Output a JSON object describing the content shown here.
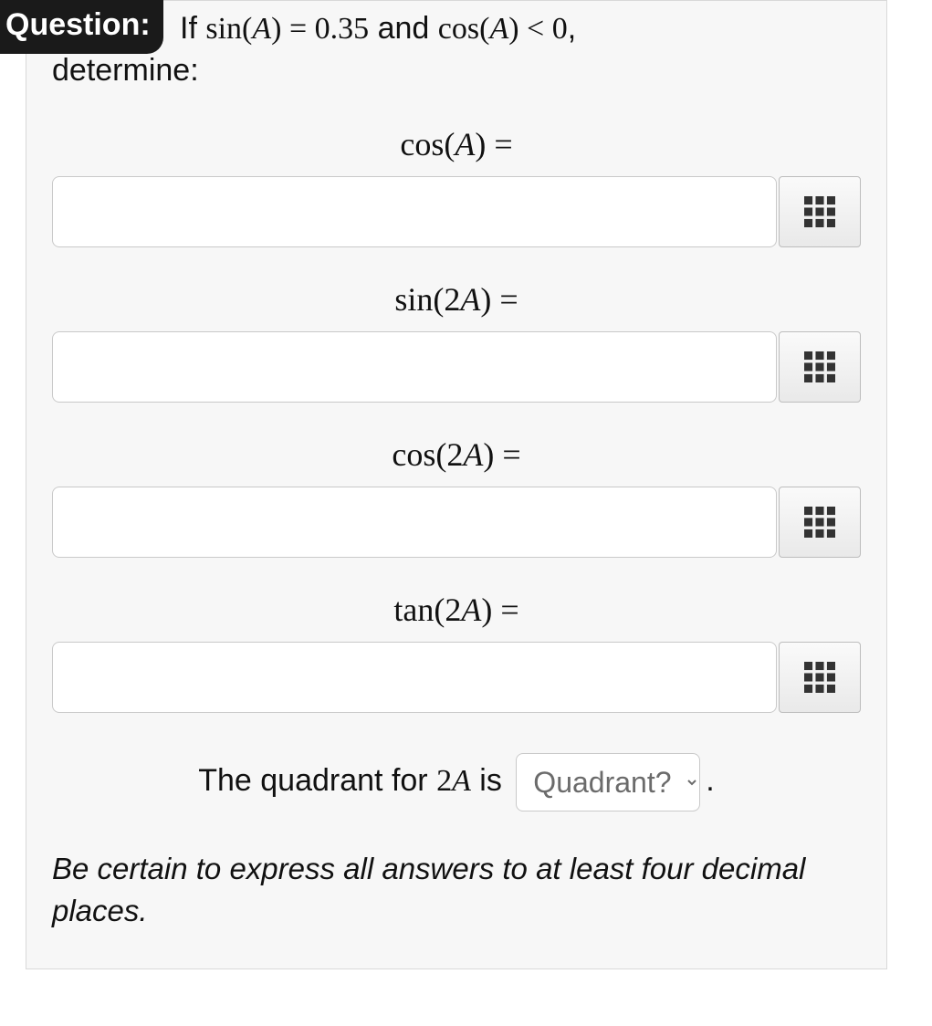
{
  "badge": {
    "label": "Question:"
  },
  "prompt": {
    "prefix": "If ",
    "expr1_fn": "sin",
    "expr1_arg": "A",
    "expr1_eq": " = ",
    "expr1_val": "0.35",
    "mid": " and ",
    "expr2_fn": "cos",
    "expr2_arg": "A",
    "expr2_rel": " < ",
    "expr2_val": "0",
    "suffix": ",",
    "line2": "determine:"
  },
  "fields": [
    {
      "fn": "cos",
      "arg": "A",
      "eq": " =",
      "value": ""
    },
    {
      "fn": "sin",
      "arg": "2A",
      "eq": " =",
      "value": ""
    },
    {
      "fn": "cos",
      "arg": "2A",
      "eq": " =",
      "value": ""
    },
    {
      "fn": "tan",
      "arg": "2A",
      "eq": " =",
      "value": ""
    }
  ],
  "quadrant": {
    "pre": "The quadrant for ",
    "arg": "2A",
    "mid": " is ",
    "placeholder": "Quadrant?",
    "post": "."
  },
  "note": "Be certain to express all answers to at least four decimal places.",
  "colors": {
    "badge_bg": "#1a1a1a",
    "badge_fg": "#ffffff",
    "card_bg": "#f7f7f7",
    "card_border": "#d9d9d9",
    "input_bg": "#ffffff",
    "input_border": "#c9c9c9",
    "btn_border": "#bdbdbd",
    "text": "#111111",
    "placeholder": "#6b6b6b",
    "icon": "#333333"
  },
  "icon": {
    "name": "keypad-grid-icon"
  }
}
